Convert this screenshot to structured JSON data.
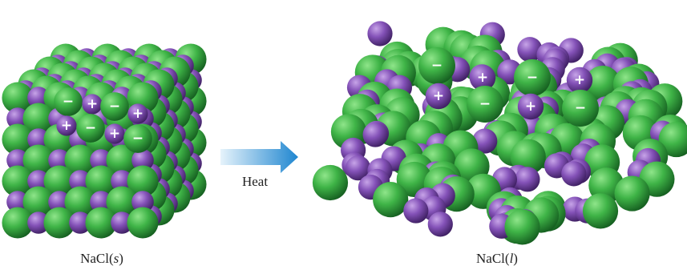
{
  "solid": {
    "caption": [
      "NaCl(",
      "s",
      ")"
    ],
    "ions": [
      "−",
      "+",
      "−",
      "+",
      "+",
      "−",
      "+",
      "−"
    ]
  },
  "arrow": {
    "label": "Heat"
  },
  "liquid": {
    "caption": [
      "NaCl(",
      "l",
      ")"
    ],
    "ions": [
      "−",
      "+",
      "−",
      "+",
      "+",
      "−",
      "+",
      "−"
    ]
  }
}
